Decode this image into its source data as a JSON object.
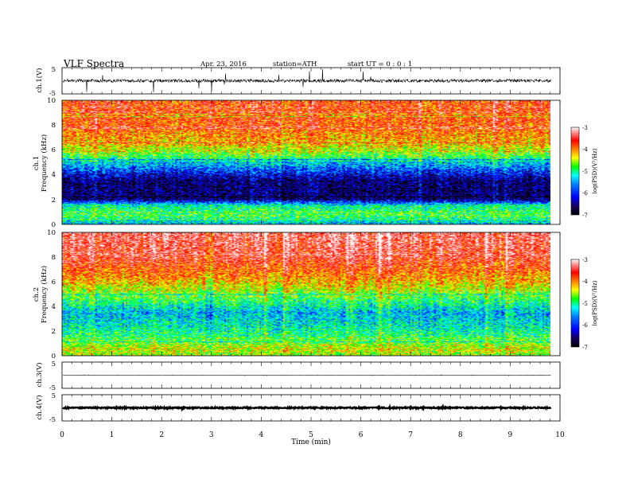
{
  "header": {
    "title": "VLF  Spectra",
    "date": "Apr. 23, 2016",
    "station": "station=ATH",
    "start_ut": "start  UT  =    0 : 0  : 1"
  },
  "chart_data": {
    "type": "heatmap",
    "time_axis": {
      "label": "Time  (min)",
      "range": [
        0,
        10
      ],
      "ticks": [
        "0",
        "1",
        "2",
        "3",
        "4",
        "5",
        "6",
        "7",
        "8",
        "9",
        "10"
      ],
      "data_end_min": 9.82
    },
    "panels": [
      {
        "kind": "waveform",
        "ylabel": "ch.1(V)",
        "ylim": [
          -5,
          5
        ],
        "yticks": [
          "5",
          "-5"
        ],
        "trace": {
          "baseline": 0,
          "noise_amplitude": 0.6,
          "spike_amplitude": 4.5
        }
      },
      {
        "kind": "spectrogram",
        "ylabel_top": "ch.1",
        "ylabel": "Frequency  (kHz)",
        "ylim": [
          0,
          10
        ],
        "yticks": [
          "0",
          "2",
          "4",
          "6",
          "8",
          "10"
        ],
        "profile_khz_to_logpsd": [
          [
            0,
            -5.6
          ],
          [
            0.3,
            -5.3
          ],
          [
            0.7,
            -5.0
          ],
          [
            1.5,
            -5.3
          ],
          [
            2.0,
            -6.6
          ],
          [
            3.5,
            -6.6
          ],
          [
            4.5,
            -5.9
          ],
          [
            5.5,
            -5.0
          ],
          [
            6.5,
            -4.4
          ],
          [
            8.0,
            -4.0
          ],
          [
            10.0,
            -3.9
          ]
        ],
        "colorbar": {
          "label": "log(PSD)(V²/Hz)",
          "range": [
            -7,
            -3
          ],
          "ticks": [
            "-3",
            "-4",
            "-5",
            "-6",
            "-7"
          ]
        }
      },
      {
        "kind": "spectrogram",
        "ylabel_top": "ch.2",
        "ylabel": "Frequency  (kHz)",
        "ylim": [
          0,
          10
        ],
        "yticks": [
          "0",
          "2",
          "4",
          "6",
          "8",
          "10"
        ],
        "profile_khz_to_logpsd": [
          [
            0,
            -4.8
          ],
          [
            0.5,
            -4.6
          ],
          [
            1.5,
            -5.1
          ],
          [
            2.5,
            -5.4
          ],
          [
            3.5,
            -5.6
          ],
          [
            4.5,
            -5.1
          ],
          [
            5.5,
            -4.6
          ],
          [
            6.5,
            -4.2
          ],
          [
            8.0,
            -3.7
          ],
          [
            10.0,
            -3.5
          ]
        ],
        "colorbar": {
          "label": "log(PSD)(V²/Hz)",
          "range": [
            -7,
            -3
          ],
          "ticks": [
            "-3",
            "-4",
            "-5",
            "-6",
            "-7"
          ]
        }
      },
      {
        "kind": "waveform",
        "ylabel": "ch.3(V)",
        "ylim": [
          -5,
          5
        ],
        "yticks": [
          "5",
          "-5"
        ],
        "trace": {
          "baseline": 0,
          "noise_amplitude": 0.05,
          "spike_amplitude": 0.2
        }
      },
      {
        "kind": "waveform",
        "ylabel": "ch.4(V)",
        "ylim": [
          -5,
          5
        ],
        "yticks": [
          "5",
          "-5"
        ],
        "trace": {
          "baseline": 0,
          "noise_amplitude": 0.25,
          "spike_amplitude": 0.3
        }
      }
    ],
    "colormap": [
      "#000000",
      "#1a0060",
      "#0000ff",
      "#0080ff",
      "#00ffff",
      "#00ff00",
      "#ffff00",
      "#ff8000",
      "#ff0000",
      "#ffa0a0",
      "#ffffff"
    ]
  }
}
